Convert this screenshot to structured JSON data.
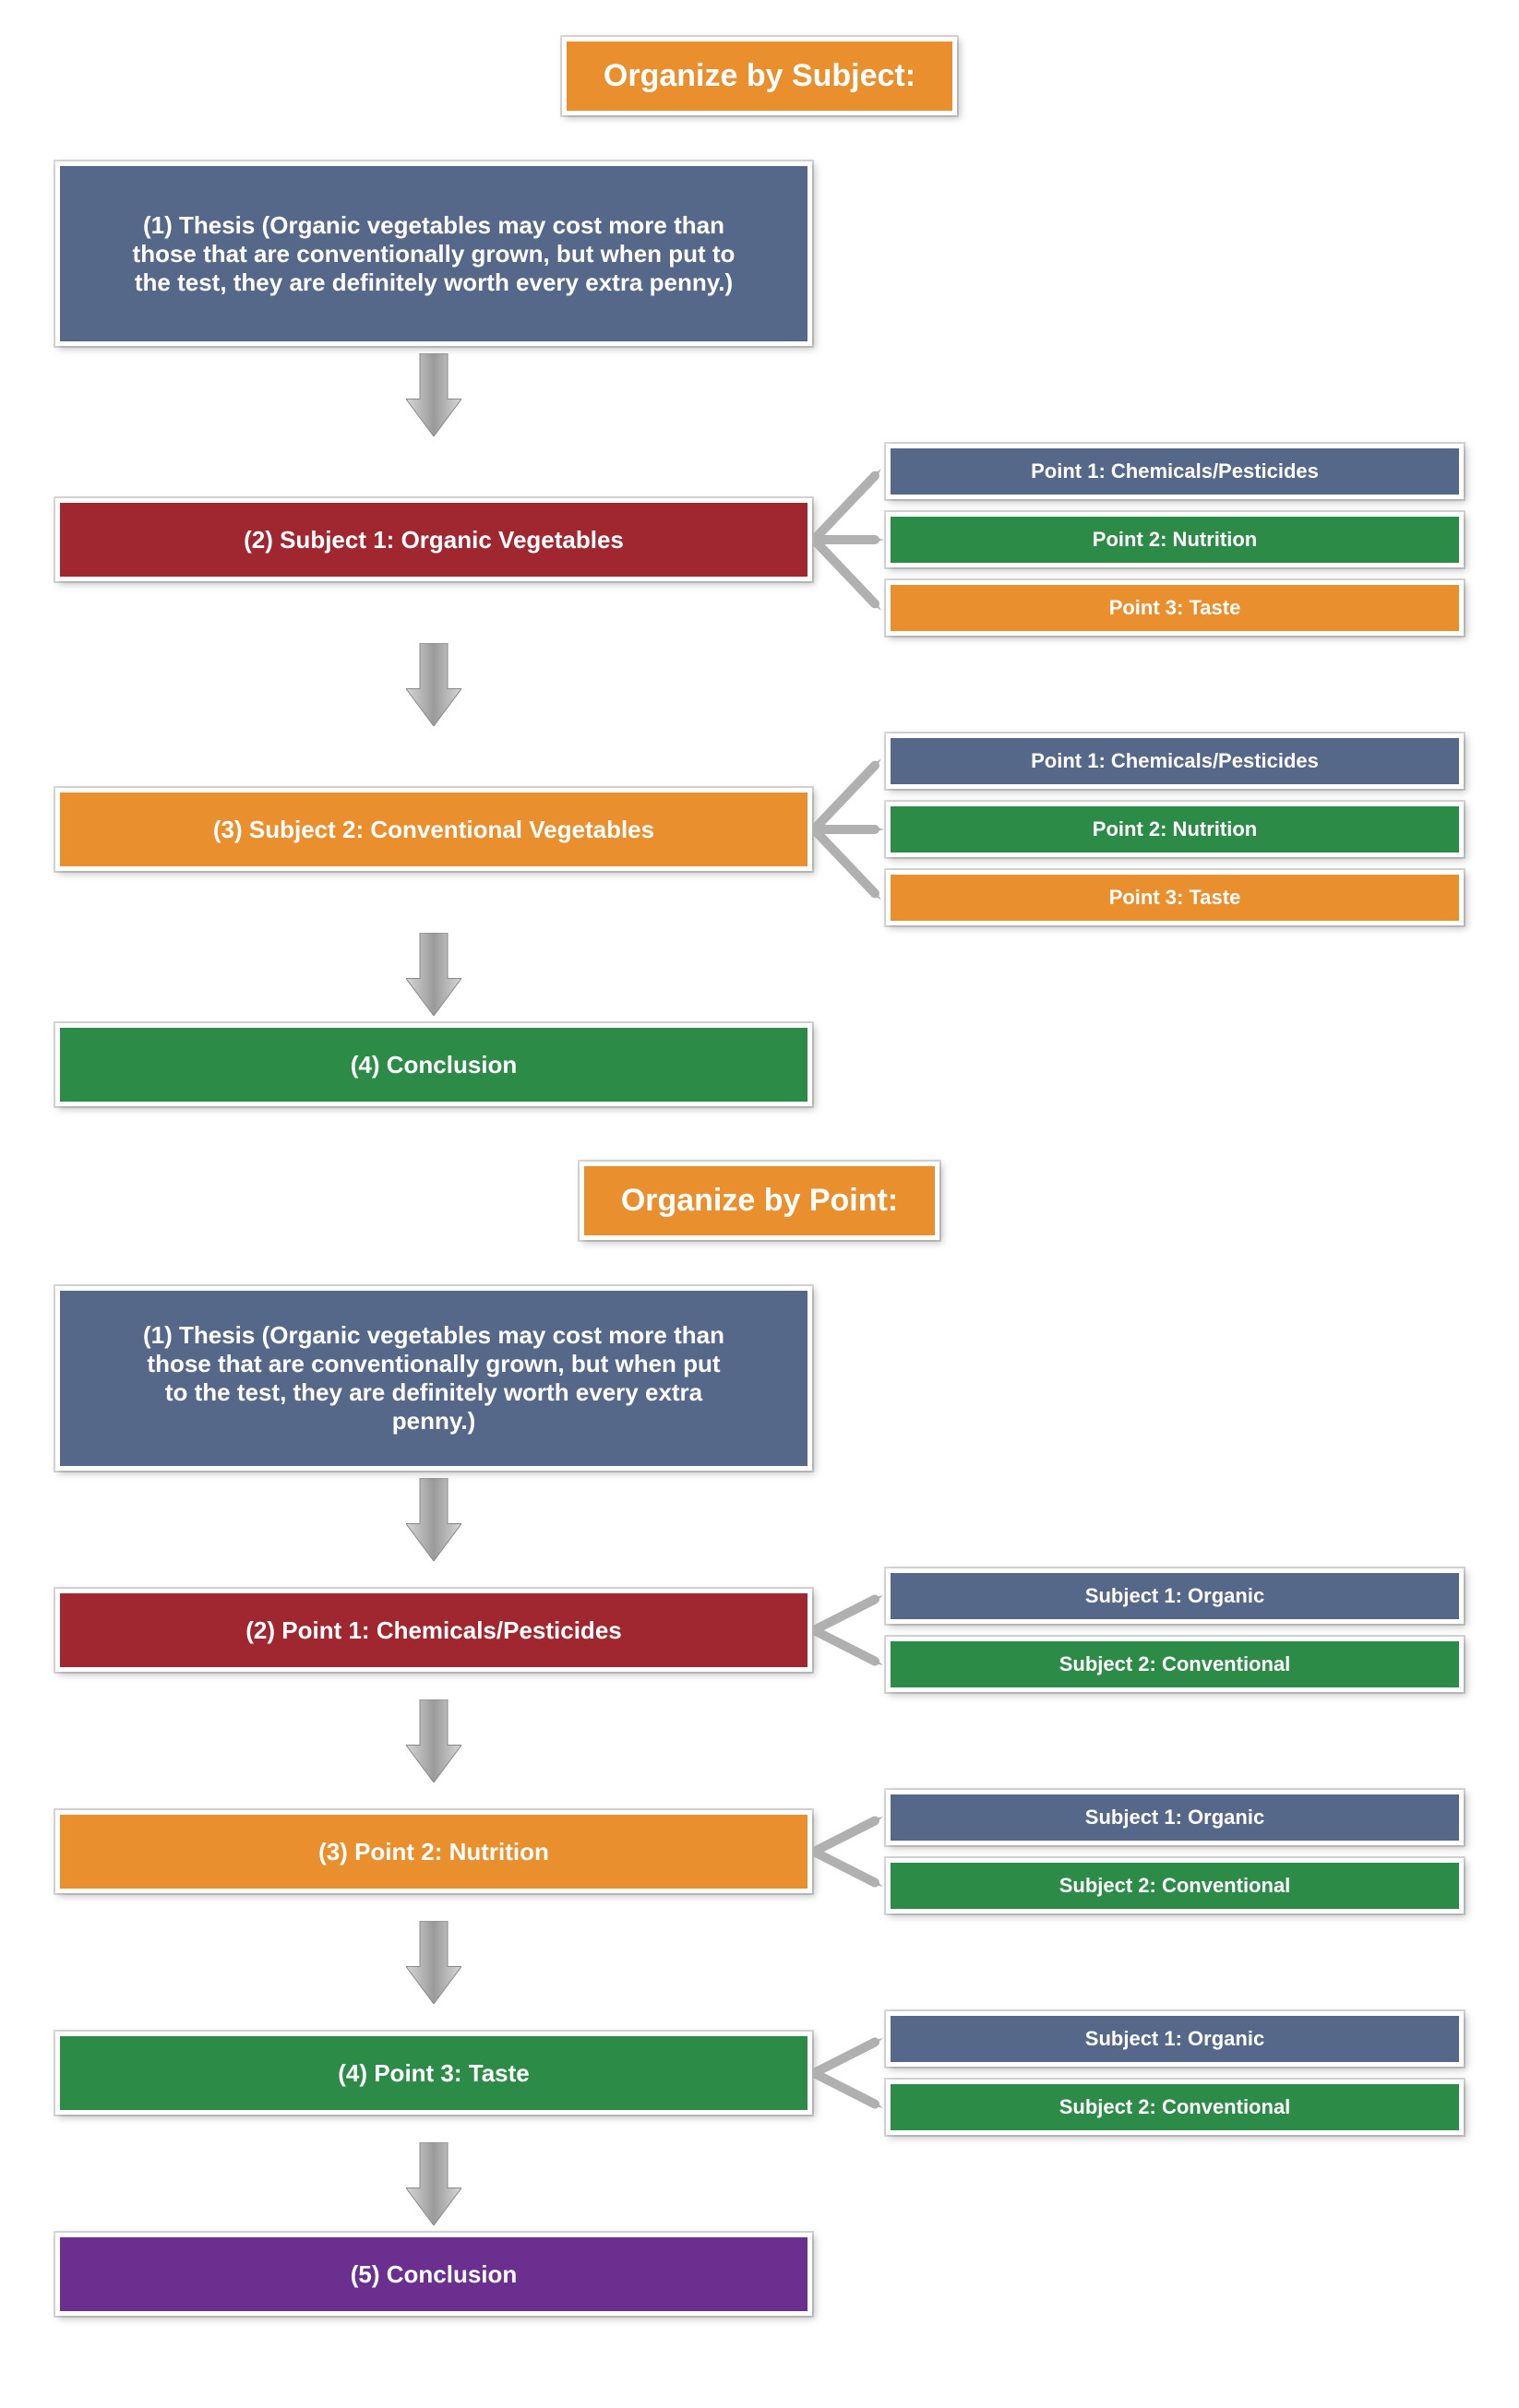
{
  "colors": {
    "orange": "#e98f2e",
    "slate": "#56688a",
    "red": "#a02730",
    "green": "#2c8b47",
    "purple": "#6a2f8f",
    "arrow": "#b0b0b0",
    "white": "#ffffff"
  },
  "section1": {
    "title": "Organize by Subject:",
    "thesis": "(1) Thesis (Organic vegetables may cost more than those that are conventionally grown, but when put to the test, they are definitely worth every extra penny.)",
    "node2": {
      "label": "(2) Subject 1: Organic Vegetables",
      "points": [
        {
          "label": "Point 1: Chemicals/Pesticides",
          "color": "slate"
        },
        {
          "label": "Point 2: Nutrition",
          "color": "green"
        },
        {
          "label": "Point 3: Taste",
          "color": "orange"
        }
      ]
    },
    "node3": {
      "label": "(3) Subject 2: Conventional Vegetables",
      "points": [
        {
          "label": "Point 1: Chemicals/Pesticides",
          "color": "slate"
        },
        {
          "label": "Point 2: Nutrition",
          "color": "green"
        },
        {
          "label": "Point 3: Taste",
          "color": "orange"
        }
      ]
    },
    "node4": "(4) Conclusion"
  },
  "section2": {
    "title": "Organize by Point:",
    "thesis": "(1) Thesis (Organic vegetables may cost more than those that are conventionally grown, but when put to the test, they are definitely worth every extra penny.)",
    "node2": {
      "label": "(2) Point 1: Chemicals/Pesticides",
      "subs": [
        {
          "label": "Subject 1: Organic",
          "color": "slate"
        },
        {
          "label": "Subject 2: Conventional",
          "color": "green"
        }
      ]
    },
    "node3": {
      "label": "(3) Point 2: Nutrition",
      "subs": [
        {
          "label": "Subject 1: Organic",
          "color": "slate"
        },
        {
          "label": "Subject 2: Conventional",
          "color": "green"
        }
      ]
    },
    "node4": {
      "label": "(4) Point 3: Taste",
      "subs": [
        {
          "label": "Subject 1: Organic",
          "color": "slate"
        },
        {
          "label": "Subject 2: Conventional",
          "color": "green"
        }
      ]
    },
    "node5": "(5) Conclusion"
  },
  "style": {
    "title_fontsize": 34,
    "main_fontsize": 26,
    "side_fontsize": 22,
    "main_col_width": 820,
    "arrow_height": 90,
    "arrow_shaft_width": 30,
    "arrow_head_width": 60
  }
}
